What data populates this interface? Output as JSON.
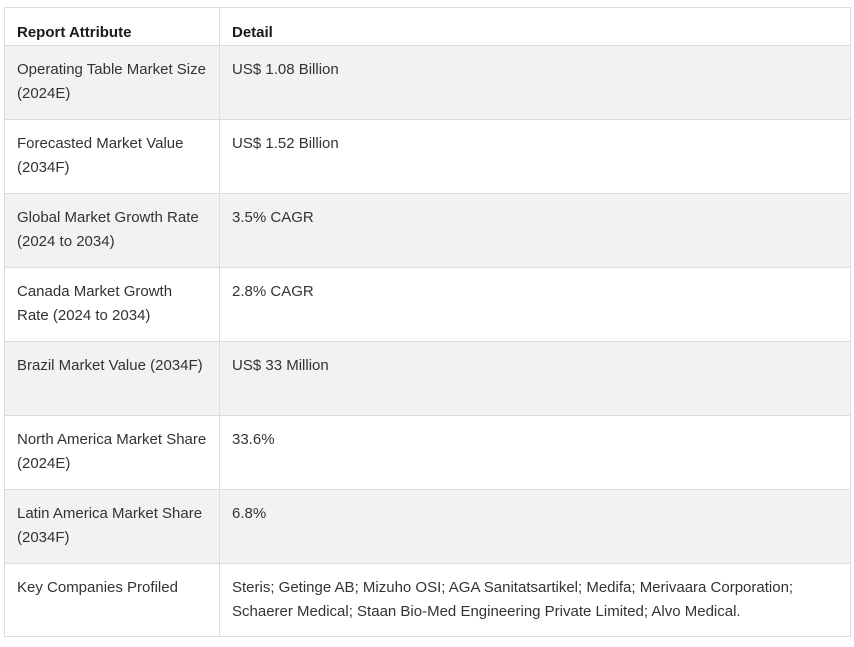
{
  "table": {
    "headers": [
      "Report Attribute",
      "Detail"
    ],
    "rows": [
      {
        "attribute": "Operating Table Market Size (2024E)",
        "detail": "US$ 1.08 Billion"
      },
      {
        "attribute": "Forecasted Market Value (2034F)",
        "detail": "US$ 1.52 Billion"
      },
      {
        "attribute": "Global Market Growth Rate (2024 to 2034)",
        "detail": "3.5% CAGR"
      },
      {
        "attribute": "Canada Market Growth Rate (2024 to 2034)",
        "detail": "2.8% CAGR"
      },
      {
        "attribute": "Brazil Market Value (2034F)",
        "detail": "US$ 33 Million"
      },
      {
        "attribute": "North America Market Share (2024E)",
        "detail": "33.6%"
      },
      {
        "attribute": "Latin America Market Share (2034F)",
        "detail": "6.8%"
      },
      {
        "attribute": "Key Companies Profiled",
        "detail": "Steris; Getinge AB; Mizuho OSI; AGA Sanitatsartikel; Medifa; Merivaara Corporation; Schaerer Medical; Staan Bio-Med Engineering Private Limited; Alvo Medical."
      }
    ]
  }
}
